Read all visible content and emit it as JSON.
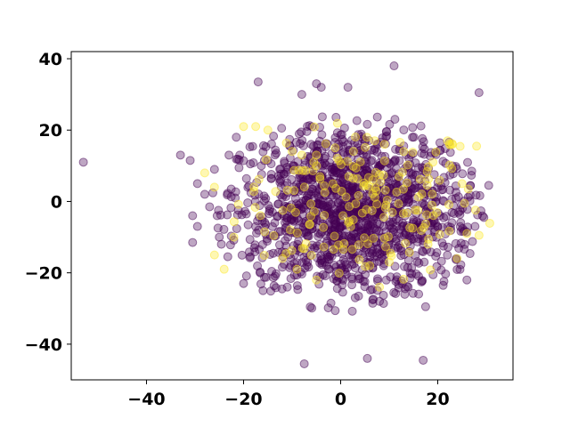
{
  "chart_data": {
    "type": "scatter",
    "title": "",
    "xlabel": "",
    "ylabel": "",
    "xlim": [
      -55.5,
      35.5
    ],
    "ylim": [
      -50,
      42
    ],
    "xticks": [
      -40,
      -20,
      0,
      20
    ],
    "yticks": [
      -40,
      -20,
      0,
      20,
      40
    ],
    "xtick_labels": [
      "−40",
      "−20",
      "0",
      "20"
    ],
    "ytick_labels": [
      "−40",
      "−20",
      "0",
      "20",
      "40"
    ],
    "grid": false,
    "legend": "none",
    "marker_alpha": 0.35,
    "colors": {
      "class_0": "#440154",
      "class_1": "#fde725"
    },
    "cluster": {
      "class_0": {
        "count": 1350,
        "center": [
          2,
          -3
        ],
        "x_radius": 29,
        "y_radius": 28
      },
      "class_1": {
        "count": 170,
        "center": [
          4,
          0
        ],
        "x_radius": 28,
        "y_radius": 24
      }
    },
    "series": [
      {
        "class": "class_0",
        "points": [
          [
            -53,
            11
          ],
          [
            -33,
            13
          ],
          [
            -31,
            11.5
          ],
          [
            -29.5,
            5
          ],
          [
            -30.5,
            -4
          ],
          [
            -29.5,
            -7
          ],
          [
            -30.5,
            -11.5
          ],
          [
            -28,
            2
          ],
          [
            -26,
            9
          ],
          [
            -27,
            -1.5
          ],
          [
            -25,
            -10
          ],
          [
            -23,
            13
          ],
          [
            -21.5,
            18
          ],
          [
            -17,
            33.5
          ],
          [
            -8,
            30
          ],
          [
            -5,
            33
          ],
          [
            -4,
            32
          ],
          [
            1.5,
            32
          ],
          [
            11,
            38
          ],
          [
            -7.5,
            -45.5
          ],
          [
            5.5,
            -44
          ],
          [
            17,
            -44.5
          ],
          [
            28.5,
            30.5
          ],
          [
            27,
            8.5
          ],
          [
            30.5,
            4.5
          ],
          [
            29.5,
            -4.5
          ],
          [
            26,
            -22
          ],
          [
            17.5,
            -29.5
          ],
          [
            -2,
            -28.5
          ],
          [
            -20,
            -23
          ],
          [
            -16,
            -25
          ],
          [
            -11,
            -24
          ],
          [
            3,
            -27
          ],
          [
            8,
            -28
          ]
        ]
      },
      {
        "class": "class_1",
        "points": [
          [
            -20,
            21
          ],
          [
            -17.5,
            21
          ],
          [
            -15,
            20
          ],
          [
            -10,
            14
          ],
          [
            -8,
            13
          ],
          [
            -5,
            13
          ],
          [
            7,
            17
          ],
          [
            9,
            16
          ],
          [
            13,
            14
          ],
          [
            22,
            17
          ],
          [
            28,
            15.5
          ],
          [
            25,
            5
          ],
          [
            -28,
            8
          ],
          [
            -26,
            4
          ],
          [
            -22,
            -10
          ],
          [
            -24,
            -19
          ],
          [
            -26,
            -15
          ],
          [
            -12,
            -16
          ],
          [
            -9,
            -19
          ],
          [
            -5,
            -22
          ],
          [
            6,
            -18
          ],
          [
            8,
            -24
          ],
          [
            10,
            -17
          ],
          [
            18,
            -12
          ],
          [
            24,
            -16
          ],
          [
            26,
            -9
          ],
          [
            28.5,
            -9.5
          ],
          [
            19,
            11
          ]
        ]
      }
    ]
  }
}
